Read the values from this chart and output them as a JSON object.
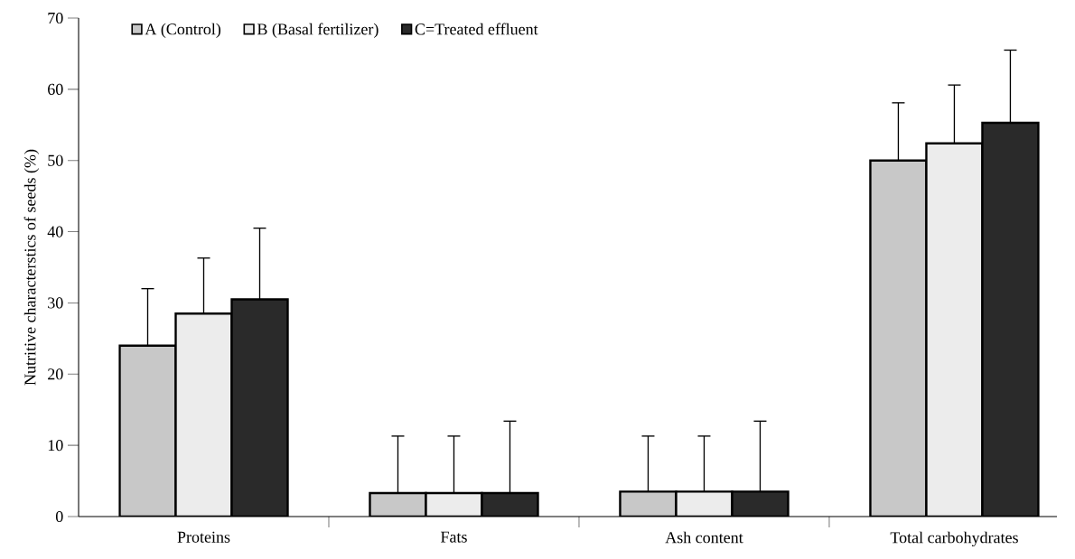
{
  "chart_data": {
    "type": "bar",
    "ylabel": "Nutritive characterstics of seeds (%)",
    "categories": [
      "Proteins",
      "Fats",
      "Ash content",
      "Total carbohydrates"
    ],
    "series": [
      {
        "name": "A (Control)",
        "color": "#c8c8c8",
        "values": [
          24,
          3.3,
          3.5,
          50
        ],
        "errors": [
          [
            24,
            32
          ],
          [
            3.3,
            11.3
          ],
          [
            3.5,
            11.3
          ],
          [
            50,
            58.1
          ]
        ]
      },
      {
        "name": "B (Basal fertilizer)",
        "color": "#ececec",
        "values": [
          28.5,
          3.3,
          3.5,
          52.4
        ],
        "errors": [
          [
            28.5,
            36.3
          ],
          [
            3.3,
            11.3
          ],
          [
            3.5,
            11.3
          ],
          [
            52.4,
            60.6
          ]
        ]
      },
      {
        "name": "C=Treated effluent",
        "color": "#2a2a2a",
        "values": [
          30.5,
          3.3,
          3.5,
          55.3
        ],
        "errors": [
          [
            30.5,
            40.5
          ],
          [
            3.3,
            13.4
          ],
          [
            3.5,
            13.4
          ],
          [
            55.3,
            65.5
          ]
        ]
      }
    ],
    "ylim": [
      0,
      70
    ],
    "yticks": [
      0,
      10,
      20,
      30,
      40,
      50,
      60,
      70
    ],
    "legend": "top left",
    "grid": false
  }
}
